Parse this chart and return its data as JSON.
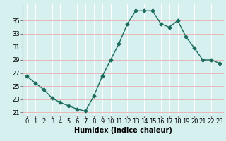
{
  "x": [
    0,
    1,
    2,
    3,
    4,
    5,
    6,
    7,
    8,
    9,
    10,
    11,
    12,
    13,
    14,
    15,
    16,
    17,
    18,
    19,
    20,
    21,
    22,
    23
  ],
  "y": [
    26.5,
    25.5,
    24.5,
    23.2,
    22.5,
    22.0,
    21.5,
    21.2,
    23.5,
    26.5,
    29.0,
    31.5,
    34.5,
    36.5,
    36.5,
    36.5,
    34.5,
    34.0,
    35.0,
    32.5,
    30.8,
    29.0,
    29.0,
    28.5
  ],
  "line_color": "#1a6b5a",
  "marker": "D",
  "marker_size": 2.5,
  "bg_color": "#d6f0f0",
  "grid_white_color": "#ffffff",
  "grid_pink_color": "#e8b8b8",
  "ylabel_ticks": [
    21,
    23,
    25,
    27,
    29,
    31,
    33,
    35
  ],
  "xlabel": "Humidex (Indice chaleur)",
  "xlabel_fontsize": 7,
  "tick_fontsize": 6,
  "ylim": [
    20.5,
    37.5
  ],
  "xlim": [
    -0.5,
    23.5
  ]
}
